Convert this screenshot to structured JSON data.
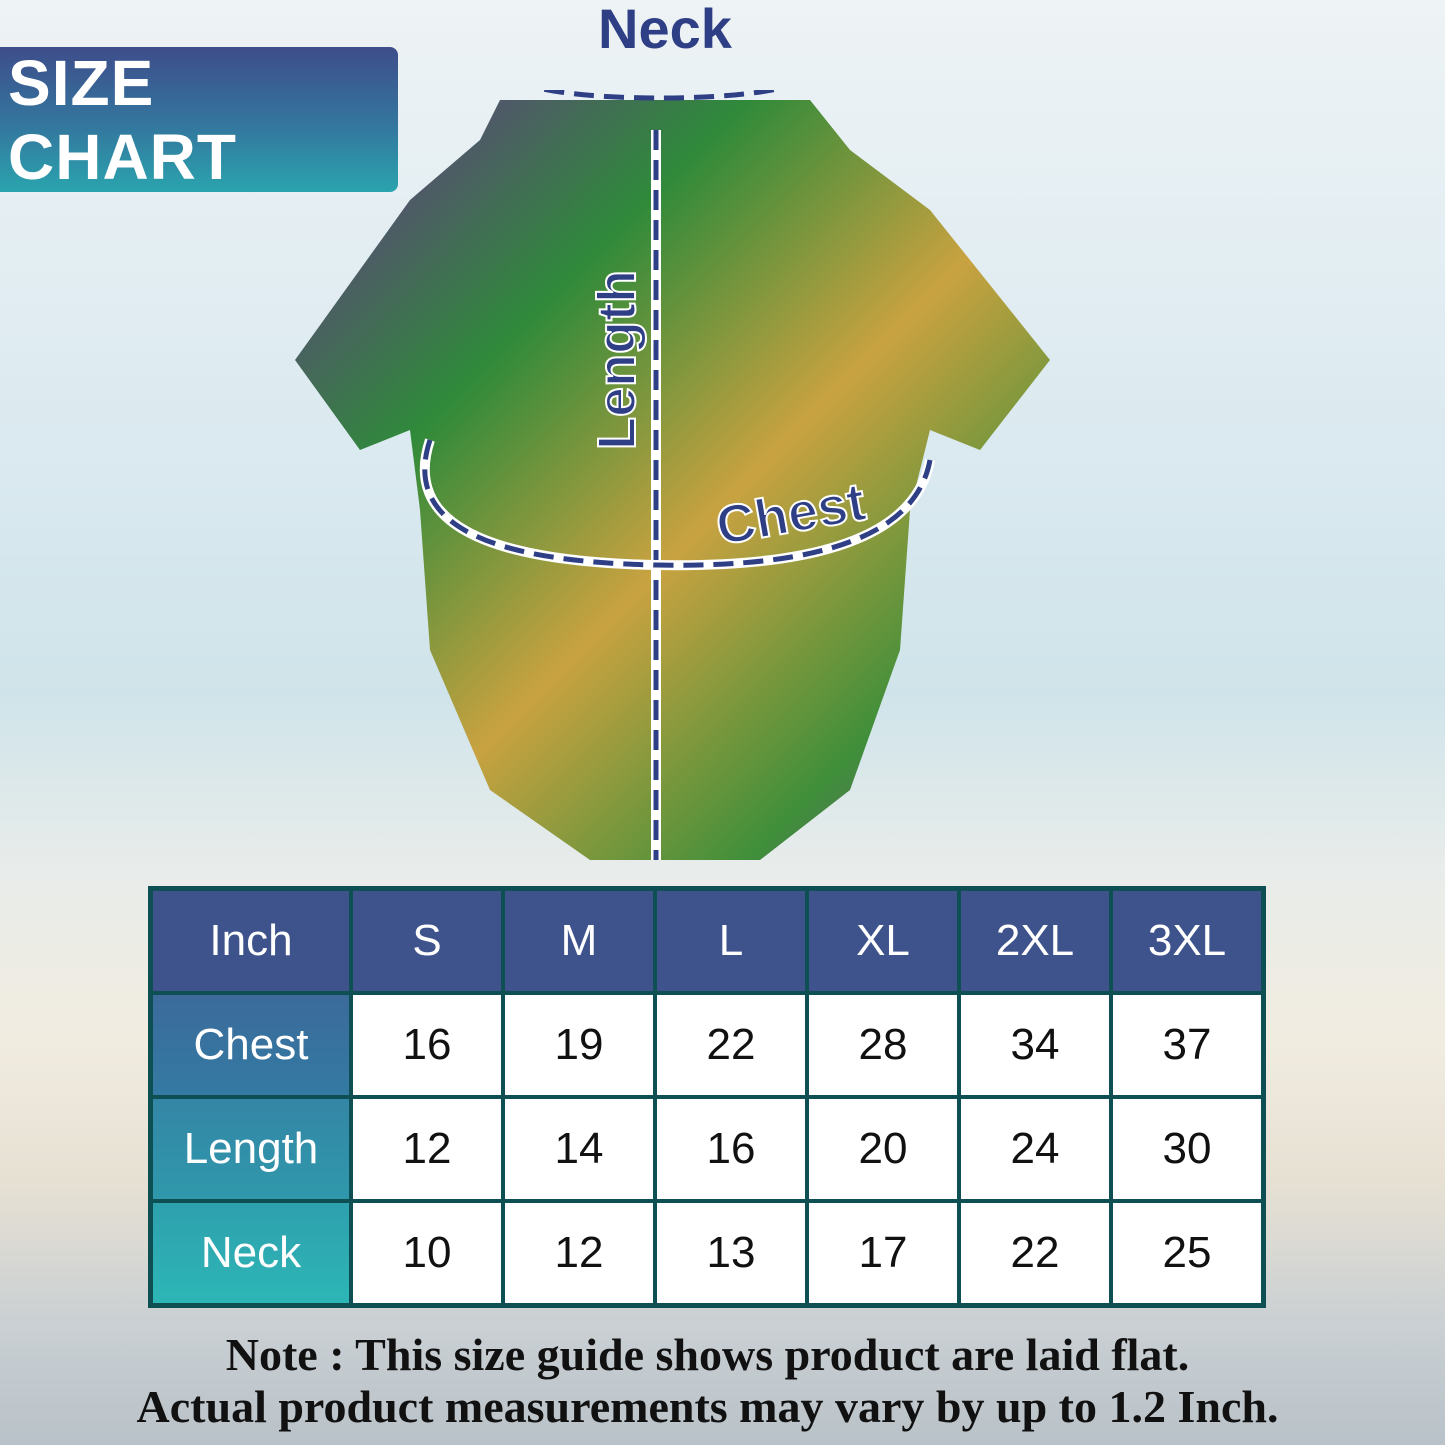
{
  "banner": {
    "title": "SIZE CHART"
  },
  "diagram": {
    "neck": "Neck",
    "length": "Length",
    "chest": "Chest"
  },
  "table": {
    "headers": [
      "Inch",
      "S",
      "M",
      "L",
      "XL",
      "2XL",
      "3XL"
    ],
    "rows": [
      {
        "label": "Chest",
        "values": [
          "16",
          "19",
          "22",
          "28",
          "34",
          "37"
        ]
      },
      {
        "label": "Length",
        "values": [
          "12",
          "14",
          "16",
          "20",
          "24",
          "30"
        ]
      },
      {
        "label": "Neck",
        "values": [
          "10",
          "12",
          "13",
          "17",
          "22",
          "25"
        ]
      }
    ]
  },
  "note": {
    "line1": "Note : This size guide shows product are laid flat.",
    "line2": "Actual product measurements may vary by up to 1.2 Inch."
  },
  "colors": {
    "header": "#3e528c",
    "border": "#0d4f52",
    "label_text": "#2f3f86"
  }
}
